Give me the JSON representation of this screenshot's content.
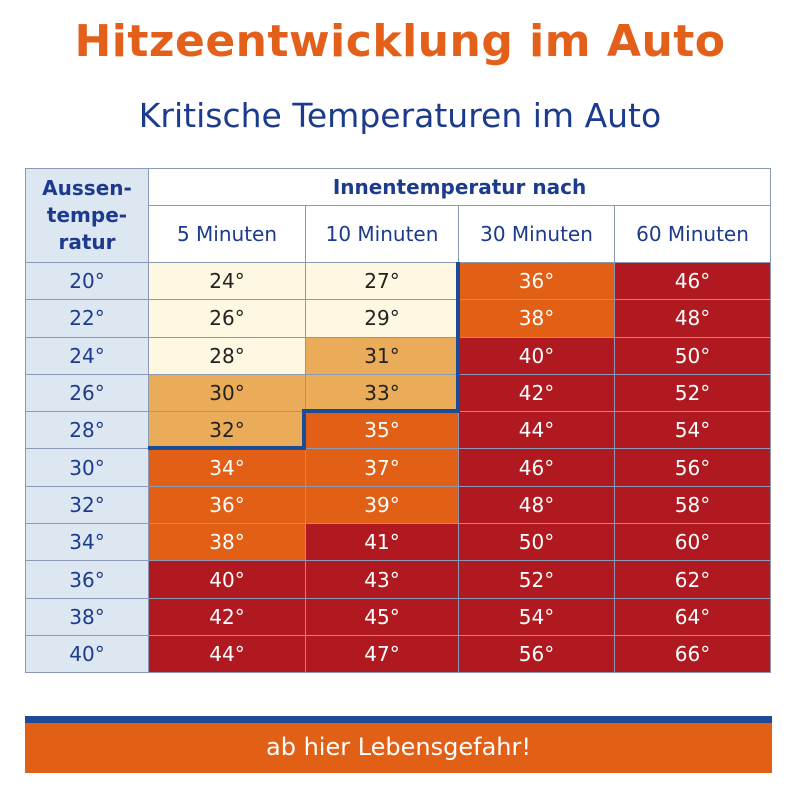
{
  "header": {
    "title": "Hitzeentwicklung im Auto",
    "subtitle": "Kritische Temperaturen im Auto"
  },
  "table": {
    "corner_label": [
      "Aussen-",
      "tempe-",
      "ratur"
    ],
    "group_header": "Innentemperatur nach",
    "columns": [
      "5 Minuten",
      "10 Minuten",
      "30 Minuten",
      "60 Minuten"
    ],
    "rows": [
      {
        "outside": "20°",
        "values": [
          "24°",
          "27°",
          "36°",
          "46°"
        ],
        "levels": [
          "pale",
          "pale",
          "orange",
          "red"
        ]
      },
      {
        "outside": "22°",
        "values": [
          "26°",
          "29°",
          "38°",
          "48°"
        ],
        "levels": [
          "pale",
          "pale",
          "orange",
          "red"
        ]
      },
      {
        "outside": "24°",
        "values": [
          "28°",
          "31°",
          "40°",
          "50°"
        ],
        "levels": [
          "pale",
          "light",
          "red",
          "red"
        ]
      },
      {
        "outside": "26°",
        "values": [
          "30°",
          "33°",
          "42°",
          "52°"
        ],
        "levels": [
          "light",
          "light",
          "red",
          "red"
        ]
      },
      {
        "outside": "28°",
        "values": [
          "32°",
          "35°",
          "44°",
          "54°"
        ],
        "levels": [
          "light",
          "orange",
          "red",
          "red"
        ]
      },
      {
        "outside": "30°",
        "values": [
          "34°",
          "37°",
          "46°",
          "56°"
        ],
        "levels": [
          "orange",
          "orange",
          "red",
          "red"
        ]
      },
      {
        "outside": "32°",
        "values": [
          "36°",
          "39°",
          "48°",
          "58°"
        ],
        "levels": [
          "orange",
          "orange",
          "red",
          "red"
        ]
      },
      {
        "outside": "34°",
        "values": [
          "38°",
          "41°",
          "50°",
          "60°"
        ],
        "levels": [
          "orange",
          "red",
          "red",
          "red"
        ]
      },
      {
        "outside": "36°",
        "values": [
          "40°",
          "43°",
          "52°",
          "62°"
        ],
        "levels": [
          "red",
          "red",
          "red",
          "red"
        ]
      },
      {
        "outside": "38°",
        "values": [
          "42°",
          "45°",
          "54°",
          "64°"
        ],
        "levels": [
          "red",
          "red",
          "red",
          "red"
        ]
      },
      {
        "outside": "40°",
        "values": [
          "44°",
          "47°",
          "56°",
          "66°"
        ],
        "levels": [
          "red",
          "red",
          "red",
          "red"
        ]
      }
    ]
  },
  "legend": {
    "danger_label": "ab hier Lebensgefahr!"
  },
  "colors": {
    "title": "#e2601a",
    "subtitle": "#1d3b8c",
    "pale": "#fef8e2",
    "light": "#eaac58",
    "orange": "#e25f16",
    "red": "#b01920",
    "outer_col": "#dde7f2",
    "boundary": "#1d4b96"
  },
  "chart_data": {
    "type": "table",
    "title": "Hitzeentwicklung im Auto",
    "subtitle": "Kritische Temperaturen im Auto",
    "row_header": "Aussentemperatur",
    "column_group": "Innentemperatur nach",
    "columns": [
      "5 Minuten",
      "10 Minuten",
      "30 Minuten",
      "60 Minuten"
    ],
    "x": [
      20,
      22,
      24,
      26,
      28,
      30,
      32,
      34,
      36,
      38,
      40
    ],
    "series": [
      {
        "name": "5 Minuten",
        "values": [
          24,
          26,
          28,
          30,
          32,
          34,
          36,
          38,
          40,
          42,
          44
        ]
      },
      {
        "name": "10 Minuten",
        "values": [
          27,
          29,
          31,
          33,
          35,
          37,
          39,
          41,
          43,
          45,
          47
        ]
      },
      {
        "name": "30 Minuten",
        "values": [
          36,
          38,
          40,
          42,
          44,
          46,
          48,
          50,
          52,
          54,
          56
        ]
      },
      {
        "name": "60 Minuten",
        "values": [
          46,
          48,
          50,
          52,
          54,
          56,
          58,
          60,
          62,
          64,
          66
        ]
      }
    ],
    "unit": "°C",
    "annotation": "ab hier Lebensgefahr!"
  }
}
